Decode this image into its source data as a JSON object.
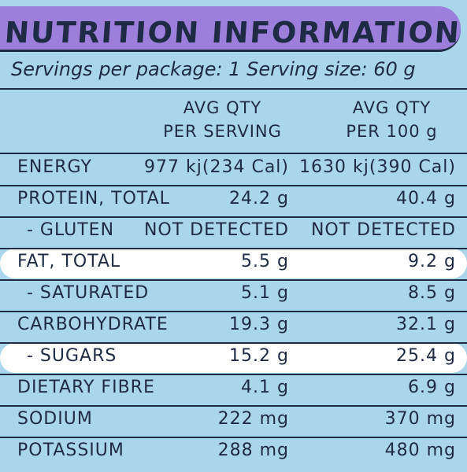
{
  "title": "NUTRITION INFORMATION",
  "servings_line": "Servings per package: 1 Serving size: 60 g",
  "headers": {
    "col1_line1": "AVG QTY",
    "col1_line2": "PER SERVING",
    "col2_line1": "AVG QTY",
    "col2_line2": "PER 100 g"
  },
  "rows": [
    {
      "name": "ENERGY",
      "per_serving": "977 kj(234 Cal)",
      "per_100g": "1630 kj(390 Cal)",
      "sub": false,
      "highlight": false
    },
    {
      "name": "PROTEIN, TOTAL",
      "per_serving": "24.2 g",
      "per_100g": "40.4 g",
      "sub": false,
      "highlight": false
    },
    {
      "name": "- GLUTEN",
      "per_serving": "NOT DETECTED",
      "per_100g": "NOT DETECTED",
      "sub": true,
      "highlight": false
    },
    {
      "name": "FAT, TOTAL",
      "per_serving": "5.5 g",
      "per_100g": "9.2 g",
      "sub": false,
      "highlight": true
    },
    {
      "name": "- SATURATED",
      "per_serving": "5.1 g",
      "per_100g": "8.5 g",
      "sub": true,
      "highlight": false
    },
    {
      "name": "CARBOHYDRATE",
      "per_serving": "19.3 g",
      "per_100g": "32.1 g",
      "sub": false,
      "highlight": false
    },
    {
      "name": "- SUGARS",
      "per_serving": "15.2 g",
      "per_100g": "25.4 g",
      "sub": true,
      "highlight": true
    },
    {
      "name": "DIETARY FIBRE",
      "per_serving": "4.1 g",
      "per_100g": "6.9 g",
      "sub": false,
      "highlight": false
    },
    {
      "name": "SODIUM",
      "per_serving": "222 mg",
      "per_100g": "370 mg",
      "sub": false,
      "highlight": false
    },
    {
      "name": "POTASSIUM",
      "per_serving": "288 mg",
      "per_100g": "480 mg",
      "sub": false,
      "highlight": false
    }
  ],
  "colors": {
    "background": "#a9d6ea",
    "title_bar": "#9b7fdb",
    "ink": "#1f2a44",
    "highlight": "#ffffff"
  }
}
